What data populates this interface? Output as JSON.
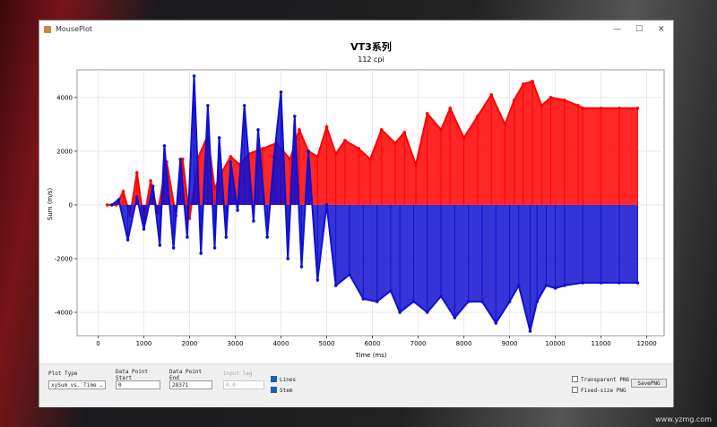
{
  "window": {
    "title": "MousePlot"
  },
  "chart_data": {
    "type": "stem",
    "title": "VT3系列",
    "subtitle": "112 cpi",
    "xlabel": "Time (ms)",
    "ylabel": "Sum (m/s)",
    "xlim": [
      -460,
      12380
    ],
    "ylim": [
      -4870,
      5030
    ],
    "xticks": [
      0,
      1000,
      2000,
      3000,
      4000,
      5000,
      6000,
      7000,
      8000,
      9000,
      10000,
      11000,
      12000
    ],
    "yticks": [
      -4000,
      -2000,
      0,
      2000,
      4000
    ],
    "grid": true,
    "series": [
      {
        "color": "#ff0000",
        "x": [
          200,
          400,
          550,
          700,
          850,
          1000,
          1150,
          1300,
          1500,
          1700,
          1850,
          2000,
          2200,
          2400,
          2550,
          2700,
          2900,
          3100,
          3300,
          3600,
          3900,
          4200,
          4400,
          4600,
          4800,
          5000,
          5200,
          5400,
          5700,
          5950,
          6200,
          6500,
          6700,
          6950,
          7200,
          7500,
          7700,
          8000,
          8300,
          8600,
          8900,
          9100,
          9300,
          9500,
          9700,
          9900,
          10200,
          10500,
          10600,
          11000,
          11400,
          11800
        ],
        "values": [
          0,
          0,
          500,
          -400,
          1200,
          -600,
          900,
          -300,
          1600,
          -400,
          1700,
          -500,
          1800,
          2600,
          600,
          1200,
          1800,
          1500,
          1900,
          2100,
          2300,
          1700,
          2800,
          2000,
          1800,
          2900,
          1900,
          2400,
          2100,
          1700,
          2800,
          2300,
          2700,
          1500,
          3400,
          2800,
          3600,
          2500,
          3300,
          4100,
          3000,
          3900,
          4500,
          4600,
          3700,
          4000,
          3900,
          3700,
          3600,
          3600,
          3600,
          3600
        ]
      },
      {
        "color": "#1010d0",
        "x": [
          300,
          450,
          650,
          850,
          1000,
          1200,
          1350,
          1450,
          1650,
          1800,
          1950,
          2100,
          2250,
          2400,
          2550,
          2650,
          2800,
          2900,
          3050,
          3200,
          3400,
          3500,
          3700,
          3850,
          4000,
          4150,
          4300,
          4450,
          4600,
          4800,
          5000,
          5200,
          5500,
          5800,
          6100,
          6400,
          6600,
          6900,
          7200,
          7500,
          7800,
          8100,
          8400,
          8700,
          9000,
          9200,
          9450,
          9600,
          9800,
          10000,
          10200,
          10600,
          11000,
          11400,
          11800
        ],
        "values": [
          0,
          200,
          -1300,
          300,
          -900,
          700,
          -1500,
          2200,
          -1600,
          1700,
          -1200,
          4800,
          -1800,
          3700,
          -1600,
          2500,
          -1200,
          1600,
          -200,
          3700,
          -600,
          2800,
          -1200,
          1800,
          4200,
          -2000,
          3300,
          -2300,
          2000,
          -2800,
          0,
          -3000,
          -2600,
          -3500,
          -3600,
          -3200,
          -4000,
          -3600,
          -4000,
          -3400,
          -4200,
          -3600,
          -3600,
          -4400,
          -3600,
          -3000,
          -4700,
          -3600,
          -3000,
          -3100,
          -3000,
          -2900,
          -2900,
          -2900,
          -2900
        ]
      }
    ]
  },
  "controls": {
    "plot_type_label": "Plot Type",
    "plot_type": "xySum vs. Time",
    "start_label": "Data Point Start",
    "start": "0",
    "end_label": "Data Point End",
    "end": "28371",
    "lag_label": "Input lag",
    "lag": "0.0",
    "lines": "Lines",
    "stem": "Stem",
    "transparent": "Transparent PNG",
    "fixed": "Fixed-size PNG",
    "save": "SavePNG"
  },
  "watermark": "www.yzmg.com"
}
